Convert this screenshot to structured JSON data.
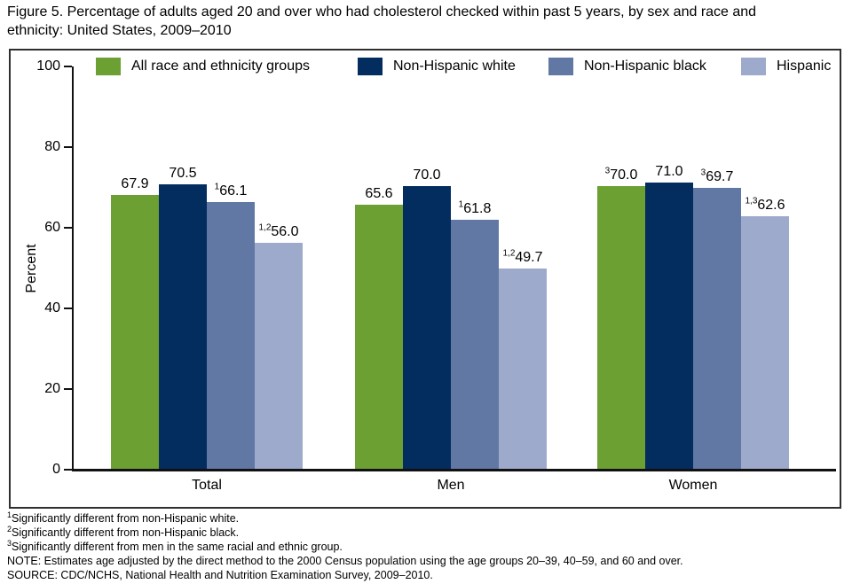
{
  "figure_title": {
    "lines": [
      "Figure 5. Percentage of adults aged 20 and over who had cholesterol checked within past 5 years, by sex and race and",
      "ethnicity: United States, 2009–2010"
    ]
  },
  "chart_data": {
    "type": "bar",
    "title": "Figure 5. Percentage of adults aged 20 and over who had cholesterol checked within past 5 years, by sex and race and ethnicity: United States, 2009–2010",
    "xlabel": "",
    "ylabel": "Percent",
    "ylim": [
      0,
      100
    ],
    "yticks": [
      0,
      20,
      40,
      60,
      80,
      100
    ],
    "grid": false,
    "legend_position": "top-inside",
    "categories": [
      "Total",
      "Men",
      "Women"
    ],
    "series": [
      {
        "name": "All race and ethnicity groups",
        "color": "#6CA032",
        "values": [
          67.9,
          65.6,
          70.0
        ],
        "labels": [
          "67.9",
          "65.6",
          "70.0"
        ],
        "label_prefixes": [
          "",
          "",
          "3"
        ]
      },
      {
        "name": "Non-Hispanic white",
        "color": "#032C5F",
        "values": [
          70.5,
          70.0,
          71.0
        ],
        "labels": [
          "70.5",
          "70.0",
          "71.0"
        ],
        "label_prefixes": [
          "",
          "",
          ""
        ]
      },
      {
        "name": "Non-Hispanic black",
        "color": "#6177A4",
        "values": [
          66.1,
          61.8,
          69.7
        ],
        "labels": [
          "66.1",
          "61.8",
          "69.7"
        ],
        "label_prefixes": [
          "1",
          "1",
          "3"
        ]
      },
      {
        "name": "Hispanic",
        "color": "#9DAACB",
        "values": [
          56.0,
          49.7,
          62.6
        ],
        "labels": [
          "56.0",
          "49.7",
          "62.6"
        ],
        "label_prefixes": [
          "1,2",
          "1,2",
          "1,3"
        ]
      }
    ]
  },
  "footnotes": [
    {
      "marker": "1",
      "text": "Significantly different from non-Hispanic white."
    },
    {
      "marker": "2",
      "text": "Significantly different from non-Hispanic black."
    },
    {
      "marker": "3",
      "text": "Significantly different from men in the same racial and ethnic group."
    },
    {
      "marker": "",
      "text": "NOTE: Estimates age adjusted by the direct method to the 2000 Census population using the age groups 20–39, 40–59, and 60 and over."
    },
    {
      "marker": "",
      "text": "SOURCE: CDC/NCHS, National Health and Nutrition Examination Survey, 2009–2010."
    }
  ]
}
